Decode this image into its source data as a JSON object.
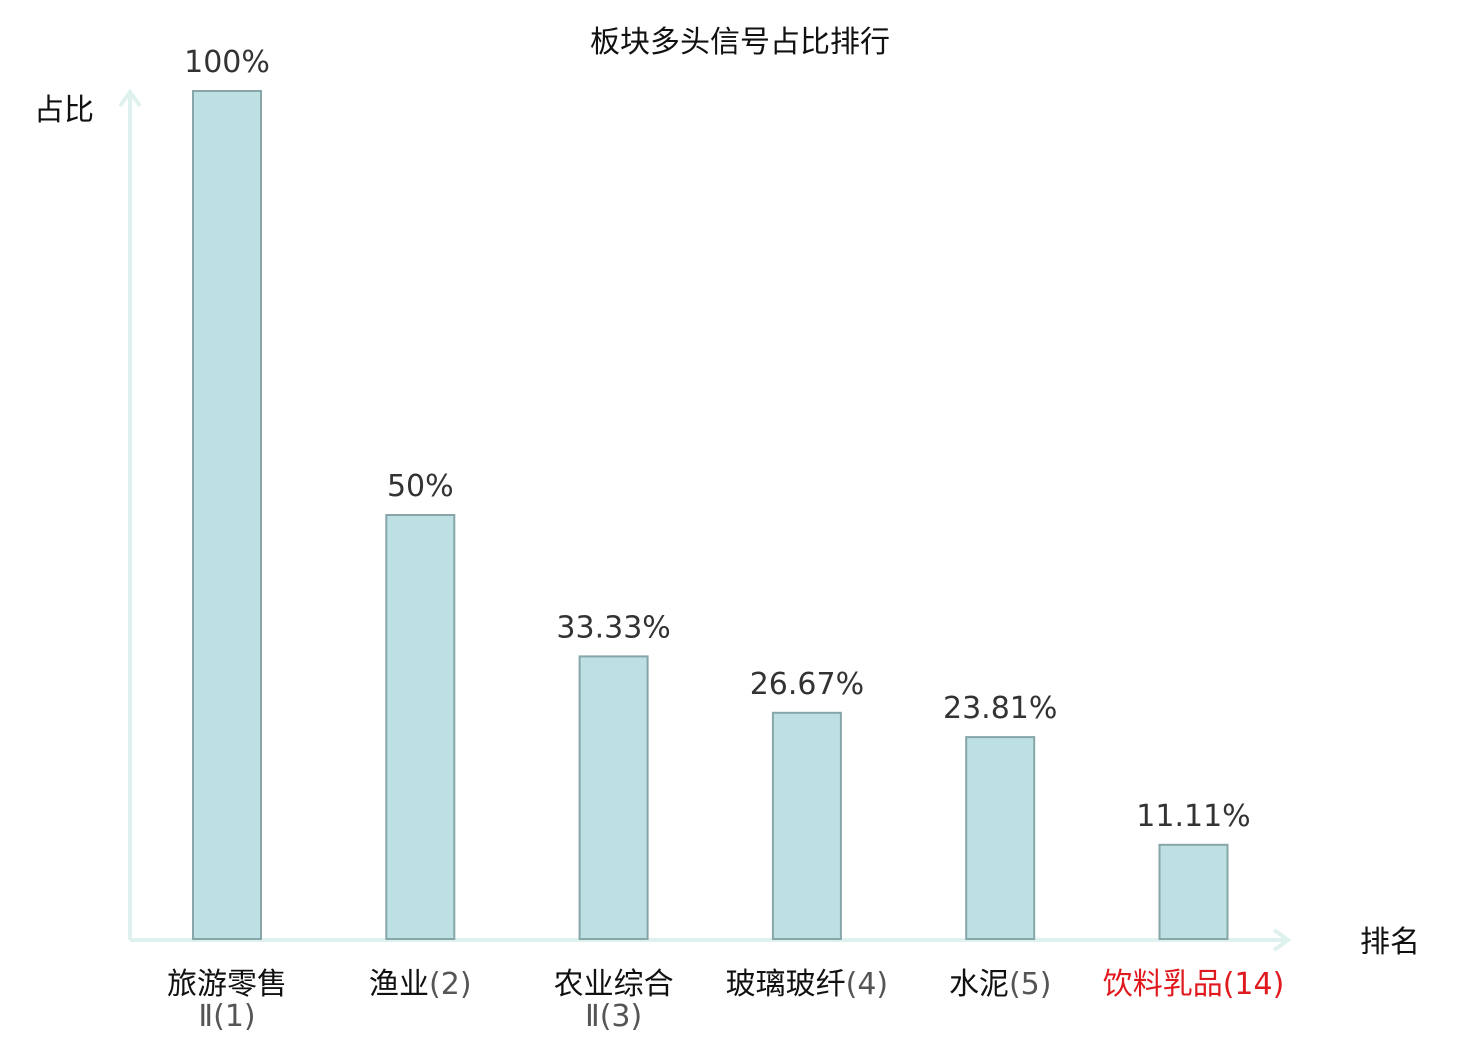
{
  "chart_data": {
    "type": "bar",
    "title": "板块多头信号占比排行",
    "xlabel": "排名",
    "ylabel": "占比",
    "ylim": [
      0,
      100
    ],
    "grid": false,
    "categories": [
      {
        "name": "旅游零售",
        "suffix": "Ⅱ(1)",
        "highlight": false
      },
      {
        "name": "渔业",
        "suffix": "(2)",
        "highlight": false
      },
      {
        "name": "农业综合",
        "suffix": "Ⅱ(3)",
        "highlight": false
      },
      {
        "name": "玻璃玻纤",
        "suffix": "(4)",
        "highlight": false
      },
      {
        "name": "水泥",
        "suffix": "(5)",
        "highlight": false
      },
      {
        "name": "饮料乳品",
        "suffix": "(14)",
        "highlight": true
      }
    ],
    "values": [
      100,
      50,
      33.33,
      26.67,
      23.81,
      11.11
    ],
    "value_labels": [
      "100%",
      "50%",
      "33.33%",
      "26.67%",
      "23.81%",
      "11.11%"
    ],
    "colors": {
      "bar_fill": "#bde0e2",
      "bar_stroke": "#86a6a9",
      "axis": "#dff1ee",
      "text": "#111111",
      "value_text": "#333333",
      "suffix_text": "#555555",
      "highlight": "#e0191f"
    }
  }
}
